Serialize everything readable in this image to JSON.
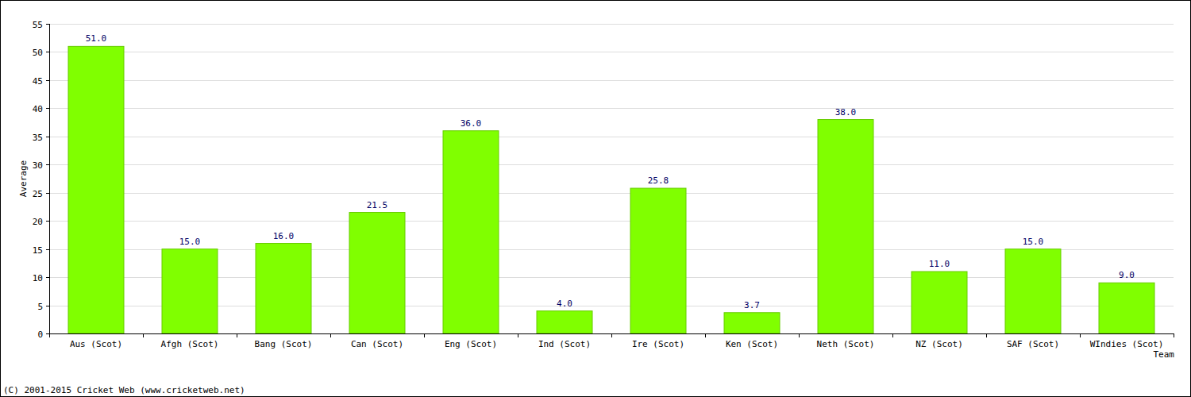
{
  "chart_data": {
    "type": "bar",
    "x_label": "Team",
    "y_label": "Average",
    "categories": [
      "Aus (Scot)",
      "Afgh (Scot)",
      "Bang (Scot)",
      "Can (Scot)",
      "Eng (Scot)",
      "Ind (Scot)",
      "Ire (Scot)",
      "Ken (Scot)",
      "Neth (Scot)",
      "NZ (Scot)",
      "SAF (Scot)",
      "WIndies (Scot)"
    ],
    "values": [
      51,
      15,
      16,
      21.5,
      36,
      4,
      25.8,
      3.7,
      38,
      11,
      15,
      9
    ],
    "value_labels": [
      "51.0",
      "15.0",
      "16.0",
      "21.5",
      "36.0",
      "4.0",
      "25.8",
      "3.7",
      "38.0",
      "11.0",
      "15.0",
      "9.0"
    ],
    "color": "#80ff00",
    "ylim": [
      0,
      55
    ],
    "yticks": [
      0,
      5,
      10,
      15,
      20,
      25,
      30,
      35,
      40,
      45,
      50,
      55
    ],
    "grid": true,
    "data_labels": true,
    "annotations": [
      "(C) 2001-2015 Cricket Web (www.cricketweb.net)"
    ]
  }
}
